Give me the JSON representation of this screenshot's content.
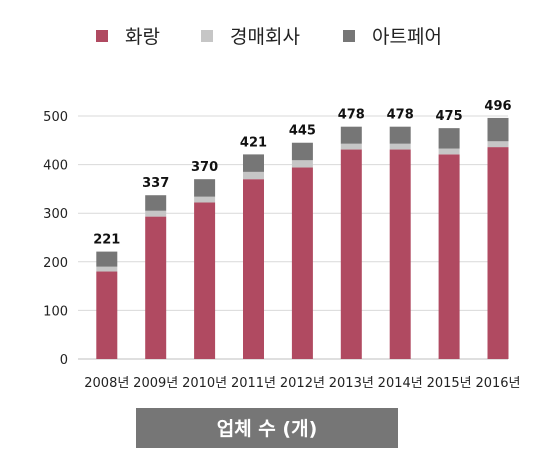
{
  "chart_data": {
    "type": "bar",
    "stacked": true,
    "categories": [
      "2008년",
      "2009년",
      "2010년",
      "2011년",
      "2012년",
      "2013년",
      "2014년",
      "2015년",
      "2016년"
    ],
    "series": [
      {
        "name": "화랑",
        "color": "#b04a61",
        "values": [
          180,
          293,
          322,
          370,
          394,
          431,
          431,
          421,
          436
        ]
      },
      {
        "name": "경매회사",
        "color": "#c6c6c6",
        "values": [
          10,
          12,
          12,
          15,
          15,
          12,
          12,
          12,
          12
        ]
      },
      {
        "name": "아트페어",
        "color": "#767676",
        "values": [
          31,
          32,
          36,
          36,
          36,
          35,
          35,
          42,
          48
        ]
      }
    ],
    "totals": [
      "221",
      "337",
      "370",
      "421",
      "445",
      "478",
      "478",
      "475",
      "496"
    ],
    "yticks": [
      "0",
      "100",
      "200",
      "300",
      "400",
      "500"
    ],
    "ylim": [
      0,
      500
    ],
    "grid": true,
    "legend_position": "top",
    "caption": "업체 수 (개)",
    "caption_color": "#767676"
  }
}
